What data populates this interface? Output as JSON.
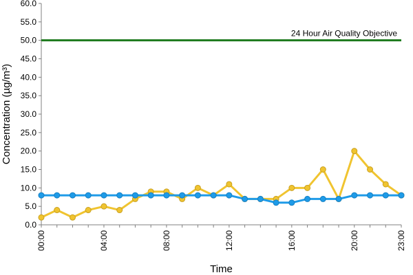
{
  "chart_data": {
    "type": "line",
    "title": "",
    "xlabel": "Time",
    "ylabel": "Concentration (µg/m³)",
    "ylim": [
      0,
      60
    ],
    "y_tick_labels": [
      "0.0",
      "5.0",
      "10.0",
      "15.0",
      "20.0",
      "25.0",
      "30.0",
      "35.0",
      "40.0",
      "45.0",
      "50.0",
      "55.0",
      "60.0"
    ],
    "x_tick_labels": [
      "00:00",
      "04:00",
      "08:00",
      "12:00",
      "16:00",
      "20:00",
      "23:00"
    ],
    "x_tick_hours": [
      0,
      4,
      8,
      12,
      16,
      20,
      23
    ],
    "grid": false,
    "legend": "none",
    "x": [
      0,
      1,
      2,
      3,
      4,
      5,
      6,
      7,
      8,
      9,
      10,
      11,
      12,
      13,
      14,
      15,
      16,
      17,
      18,
      19,
      20,
      21,
      22,
      23
    ],
    "series": [
      {
        "name": "",
        "color": "#f0c430",
        "values": [
          2,
          4,
          2,
          4,
          5,
          4,
          7,
          9,
          9,
          7,
          10,
          8,
          11,
          7,
          7,
          7,
          10,
          10,
          15,
          7,
          20,
          15,
          11,
          8
        ]
      },
      {
        "name": "",
        "color": "#1e9be8",
        "values": [
          8,
          8,
          8,
          8,
          8,
          8,
          8,
          8,
          8,
          8,
          8,
          8,
          8,
          7,
          7,
          6,
          6,
          7,
          7,
          7,
          8,
          8,
          8,
          8
        ]
      }
    ],
    "objective": {
      "label": "24 Hour Air Quality Objective",
      "value": 50,
      "color": "#1e7a1e"
    }
  }
}
